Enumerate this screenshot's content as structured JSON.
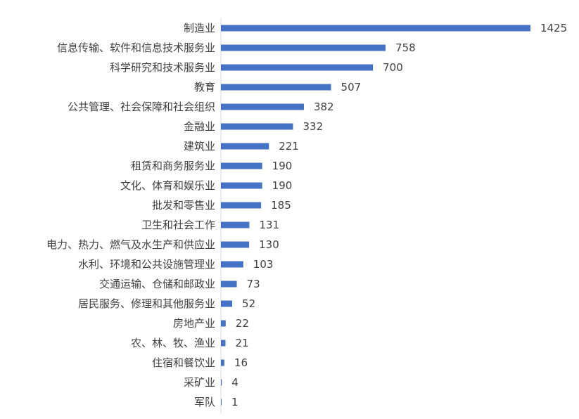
{
  "chart_data": {
    "type": "bar",
    "orientation": "horizontal",
    "categories": [
      "制造业",
      "信息传输、软件和信息技术服务业",
      "科学研究和技术服务业",
      "教育",
      "公共管理、社会保障和社会组织",
      "金融业",
      "建筑业",
      "租赁和商务服务业",
      "文化、体育和娱乐业",
      "批发和零售业",
      "卫生和社会工作",
      "电力、热力、燃气及水生产和供应业",
      "水利、环境和公共设施管理业",
      "交通运输、仓储和邮政业",
      "居民服务、修理和其他服务业",
      "房地产业",
      "农、林、牧、渔业",
      "住宿和餐饮业",
      "采矿业",
      "军队"
    ],
    "values": [
      1425,
      758,
      700,
      507,
      382,
      332,
      221,
      190,
      190,
      185,
      131,
      130,
      103,
      73,
      52,
      22,
      21,
      16,
      4,
      1
    ],
    "xlim": [
      0,
      1425
    ],
    "grid": false,
    "legend": "none",
    "data_labels": true,
    "bar_color": "#4472C4",
    "axis_color": "#D9D9D9"
  }
}
